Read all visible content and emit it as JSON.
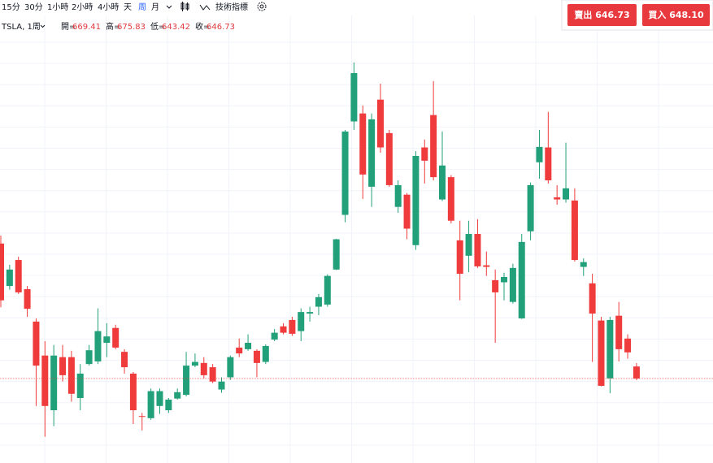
{
  "toolbar": {
    "intervals": [
      "15分",
      "30分",
      "1小時",
      "2小時",
      "4小時",
      "天",
      "周",
      "月"
    ],
    "indicators": "技術指標"
  },
  "trade": {
    "sell": {
      "label": "賣出",
      "price": "646.73"
    },
    "buy": {
      "label": "買入",
      "price": "648.10"
    }
  },
  "chart_data": {
    "type": "candlestick",
    "symbol": "TSLA, 1周",
    "legend_labels": [
      "開=",
      "高=",
      "低=",
      "收="
    ],
    "open": [
      901,
      821,
      870,
      815,
      754,
      690,
      587,
      687,
      687,
      610,
      674,
      679,
      714,
      742,
      697,
      656,
      576,
      572,
      595,
      587,
      609,
      616,
      671,
      676,
      668,
      626,
      649,
      705,
      702,
      699,
      678,
      720,
      745,
      757,
      736,
      769,
      782,
      786,
      852,
      955,
      1131,
      1146,
      1008,
      1172,
      1109,
      970,
      993,
      898,
      1082,
      1143,
      984,
      1026,
      907,
      878,
      919,
      860,
      832,
      828,
      791,
      760,
      924,
      1054,
      1082,
      988,
      984,
      982,
      857,
      826,
      756,
      647,
      765,
      722,
      669.41
    ],
    "high": [
      916,
      861,
      876,
      821,
      760,
      717,
      710,
      710,
      699,
      674,
      710,
      779,
      751,
      748,
      702,
      659,
      582,
      628,
      628,
      610,
      628,
      697,
      694,
      687,
      674,
      649,
      690,
      722,
      730,
      702,
      711,
      740,
      751,
      763,
      779,
      782,
      806,
      843,
      910,
      1115,
      1242,
      1161,
      1146,
      1202,
      1115,
      1020,
      996,
      1075,
      1097,
      1207,
      1112,
      1030,
      944,
      944,
      947,
      886,
      852,
      846,
      863,
      919,
      1016,
      1115,
      1149,
      1011,
      1091,
      1005,
      873,
      844,
      763,
      763,
      791,
      730,
      675.83
    ],
    "low": [
      781,
      814,
      806,
      763,
      595,
      537,
      557,
      641,
      603,
      587,
      671,
      674,
      687,
      702,
      656,
      561,
      549,
      569,
      580,
      582,
      607,
      613,
      668,
      647,
      638,
      620,
      644,
      687,
      699,
      649,
      674,
      717,
      730,
      727,
      717,
      754,
      766,
      782,
      851,
      941,
      1115,
      985,
      970,
      1072,
      1008,
      959,
      909,
      889,
      1014,
      1020,
      981,
      939,
      794,
      847,
      855,
      840,
      714,
      794,
      788,
      759,
      907,
      1023,
      1014,
      974,
      978,
      867,
      840,
      678,
      632,
      619,
      679,
      684,
      643.42
    ],
    "close": [
      794,
      852,
      809,
      778,
      671,
      595,
      690,
      653,
      618,
      656,
      700,
      736,
      726,
      705,
      668,
      587,
      575,
      623,
      623,
      607,
      621,
      671,
      678,
      653,
      641,
      641,
      687,
      694,
      714,
      676,
      708,
      733,
      733,
      731,
      772,
      772,
      800,
      840,
      909,
      1112,
      1222,
      1031,
      1135,
      1082,
      1011,
      1011,
      929,
      1066,
      1057,
      1026,
      1048,
      944,
      844,
      919,
      858,
      857,
      809,
      838,
      855,
      904,
      1011,
      1083,
      1020,
      984,
      1005,
      870,
      866,
      769,
      633,
      757,
      702,
      696,
      646.73
    ],
    "up_color": "#22a079",
    "down_color": "#ef3b3b",
    "ylim": [
      487.6,
      1329.1
    ]
  }
}
